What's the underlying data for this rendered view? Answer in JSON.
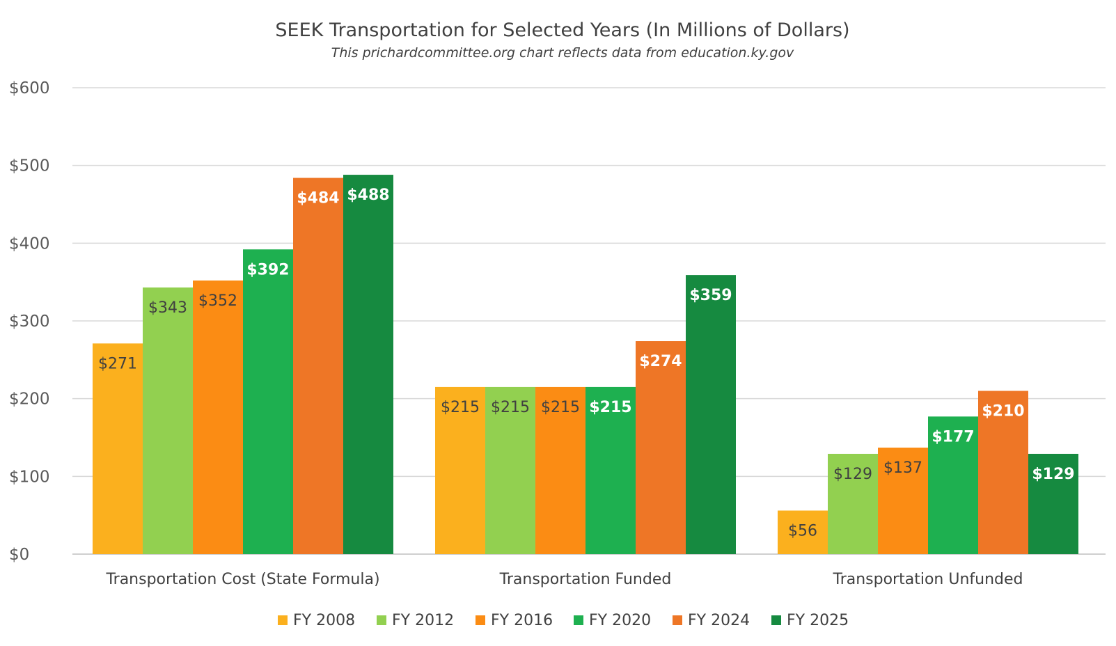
{
  "chart_data": {
    "type": "bar",
    "title": "SEEK Transportation for Selected Years (In Millions of Dollars)",
    "subtitle": "This prichardcommittee.org chart reflects data from education.ky.gov",
    "categories": [
      "Transportation Cost (State Formula)",
      "Transportation Funded",
      "Transportation Unfunded"
    ],
    "series": [
      {
        "name": "FY 2008",
        "color": "#FBB01E",
        "label_style": "dark",
        "values": [
          271,
          215,
          56
        ],
        "labels": [
          "$271",
          "$215",
          "$56"
        ]
      },
      {
        "name": "FY 2012",
        "color": "#92D050",
        "label_style": "dark",
        "values": [
          343,
          215,
          129
        ],
        "labels": [
          "$343",
          "$215",
          "$129"
        ]
      },
      {
        "name": "FY 2016",
        "color": "#FB8C14",
        "label_style": "dark",
        "values": [
          352,
          215,
          137
        ],
        "labels": [
          "$352",
          "$215",
          "$137"
        ]
      },
      {
        "name": "FY 2020",
        "color": "#1EB050",
        "label_style": "light",
        "values": [
          392,
          215,
          177
        ],
        "labels": [
          "$392",
          "$215",
          "$177"
        ]
      },
      {
        "name": "FY 2024",
        "color": "#EE7626",
        "label_style": "light",
        "values": [
          484,
          274,
          210
        ],
        "labels": [
          "$484",
          "$274",
          "$210"
        ]
      },
      {
        "name": "FY 2025",
        "color": "#168A40",
        "label_style": "light",
        "values": [
          488,
          359,
          129
        ],
        "labels": [
          "$488",
          "$359",
          "$129"
        ]
      }
    ],
    "xlabel": "",
    "ylabel": "",
    "ylim": [
      0,
      600
    ],
    "yticks": [
      0,
      100,
      200,
      300,
      400,
      500,
      600
    ],
    "ytick_labels": [
      "$0",
      "$100",
      "$200",
      "$300",
      "$400",
      "$500",
      "$600"
    ],
    "grid": true,
    "legend_position": "bottom"
  }
}
